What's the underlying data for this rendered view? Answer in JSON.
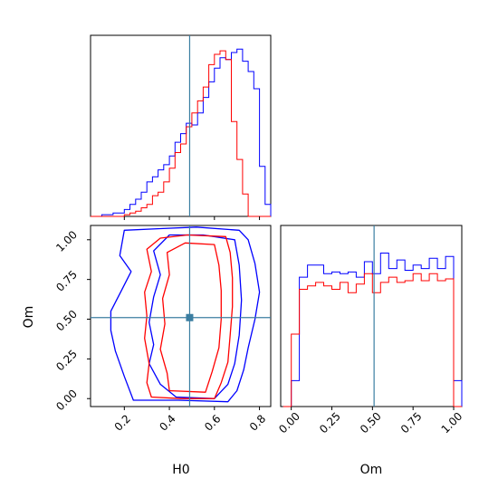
{
  "chart_data": [
    {
      "type": "histogram",
      "panel": "H0 marginal",
      "parameter": "H0",
      "truth": 0.49,
      "bin_edges": [
        0.05,
        0.075,
        0.1,
        0.125,
        0.15,
        0.175,
        0.2,
        0.225,
        0.25,
        0.275,
        0.3,
        0.325,
        0.35,
        0.375,
        0.4,
        0.425,
        0.45,
        0.475,
        0.5,
        0.525,
        0.55,
        0.575,
        0.6,
        0.625,
        0.65,
        0.675,
        0.7,
        0.725,
        0.75,
        0.775,
        0.8,
        0.825,
        0.85
      ],
      "series": [
        {
          "color": "#0000ff",
          "values": [
            0,
            0,
            0.01,
            0.01,
            0.02,
            0.02,
            0.04,
            0.07,
            0.1,
            0.14,
            0.2,
            0.23,
            0.27,
            0.3,
            0.35,
            0.43,
            0.48,
            0.54,
            0.53,
            0.6,
            0.69,
            0.78,
            0.86,
            0.92,
            0.91,
            0.95,
            0.97,
            0.9,
            0.84,
            0.74,
            0.29,
            0.07
          ]
        },
        {
          "color": "#ff0000",
          "values": [
            0,
            0,
            0,
            0,
            0,
            0,
            0.01,
            0.02,
            0.03,
            0.05,
            0.07,
            0.12,
            0.14,
            0.2,
            0.28,
            0.37,
            0.42,
            0.52,
            0.6,
            0.67,
            0.75,
            0.88,
            0.94,
            0.96,
            0.91,
            0.55,
            0.33,
            0.13,
            0,
            0,
            0,
            0
          ]
        }
      ]
    },
    {
      "type": "contour",
      "panel": "H0 vs Om",
      "xlabel": "H0",
      "ylabel": "Om",
      "x_ticks": [
        "0.2",
        "0.4",
        "0.6",
        "0.8"
      ],
      "y_ticks": [
        "0.00",
        "0.25",
        "0.50",
        "0.75",
        "1.00"
      ],
      "truth": [
        0.49,
        0.51
      ],
      "series": [
        {
          "color": "#0000ff",
          "level": "outer",
          "polygon": [
            [
              0.24,
              -0.01
            ],
            [
              0.44,
              -0.01
            ],
            [
              0.66,
              -0.02
            ],
            [
              0.7,
              0.05
            ],
            [
              0.73,
              0.18
            ],
            [
              0.75,
              0.32
            ],
            [
              0.78,
              0.5
            ],
            [
              0.8,
              0.67
            ],
            [
              0.78,
              0.85
            ],
            [
              0.75,
              1.0
            ],
            [
              0.71,
              1.06
            ],
            [
              0.52,
              1.08
            ],
            [
              0.36,
              1.07
            ],
            [
              0.2,
              1.06
            ],
            [
              0.18,
              0.9
            ],
            [
              0.23,
              0.8
            ],
            [
              0.18,
              0.66
            ],
            [
              0.14,
              0.55
            ],
            [
              0.14,
              0.43
            ],
            [
              0.16,
              0.3
            ],
            [
              0.2,
              0.14
            ]
          ]
        },
        {
          "color": "#0000ff",
          "level": "inner",
          "polygon": [
            [
              0.43,
              0.01
            ],
            [
              0.6,
              0.0
            ],
            [
              0.66,
              0.09
            ],
            [
              0.69,
              0.22
            ],
            [
              0.71,
              0.4
            ],
            [
              0.72,
              0.62
            ],
            [
              0.71,
              0.84
            ],
            [
              0.69,
              1.0
            ],
            [
              0.55,
              1.03
            ],
            [
              0.4,
              1.03
            ],
            [
              0.33,
              0.93
            ],
            [
              0.36,
              0.78
            ],
            [
              0.33,
              0.64
            ],
            [
              0.31,
              0.48
            ],
            [
              0.33,
              0.34
            ],
            [
              0.31,
              0.22
            ],
            [
              0.36,
              0.09
            ]
          ]
        },
        {
          "color": "#ff0000",
          "level": "outer",
          "polygon": [
            [
              0.32,
              0.01
            ],
            [
              0.45,
              0.0
            ],
            [
              0.6,
              0.0
            ],
            [
              0.63,
              0.1
            ],
            [
              0.66,
              0.23
            ],
            [
              0.67,
              0.4
            ],
            [
              0.68,
              0.58
            ],
            [
              0.68,
              0.76
            ],
            [
              0.67,
              0.92
            ],
            [
              0.65,
              1.02
            ],
            [
              0.48,
              1.03
            ],
            [
              0.36,
              1.01
            ],
            [
              0.3,
              0.94
            ],
            [
              0.32,
              0.8
            ],
            [
              0.29,
              0.67
            ],
            [
              0.3,
              0.52
            ],
            [
              0.29,
              0.38
            ],
            [
              0.31,
              0.22
            ],
            [
              0.3,
              0.1
            ]
          ]
        },
        {
          "color": "#ff0000",
          "level": "inner",
          "polygon": [
            [
              0.4,
              0.05
            ],
            [
              0.56,
              0.04
            ],
            [
              0.59,
              0.17
            ],
            [
              0.62,
              0.32
            ],
            [
              0.63,
              0.5
            ],
            [
              0.63,
              0.68
            ],
            [
              0.62,
              0.84
            ],
            [
              0.6,
              0.97
            ],
            [
              0.47,
              0.98
            ],
            [
              0.39,
              0.92
            ],
            [
              0.4,
              0.78
            ],
            [
              0.37,
              0.63
            ],
            [
              0.38,
              0.47
            ],
            [
              0.36,
              0.31
            ],
            [
              0.39,
              0.16
            ]
          ]
        }
      ]
    },
    {
      "type": "histogram",
      "panel": "Om marginal",
      "parameter": "Om",
      "xlabel": "Om",
      "x_ticks": [
        "0.00",
        "0.25",
        "0.50",
        "0.75",
        "1.00"
      ],
      "truth": 0.51,
      "bin_edges": [
        -0.05,
        0.0,
        0.05,
        0.1,
        0.15,
        0.2,
        0.25,
        0.3,
        0.35,
        0.4,
        0.45,
        0.5,
        0.55,
        0.6,
        0.65,
        0.7,
        0.75,
        0.8,
        0.85,
        0.9,
        0.95,
        1.0,
        1.05
      ],
      "series": [
        {
          "color": "#0000ff",
          "values": [
            0.0,
            0.15,
            0.75,
            0.82,
            0.82,
            0.77,
            0.78,
            0.77,
            0.78,
            0.75,
            0.84,
            0.77,
            0.89,
            0.8,
            0.85,
            0.79,
            0.82,
            0.8,
            0.86,
            0.8,
            0.87,
            0.15
          ]
        },
        {
          "color": "#ff0000",
          "values": [
            0.0,
            0.42,
            0.68,
            0.7,
            0.72,
            0.7,
            0.68,
            0.72,
            0.66,
            0.71,
            0.77,
            0.66,
            0.72,
            0.75,
            0.72,
            0.73,
            0.77,
            0.73,
            0.77,
            0.73,
            0.74,
            0.0
          ]
        }
      ]
    }
  ]
}
